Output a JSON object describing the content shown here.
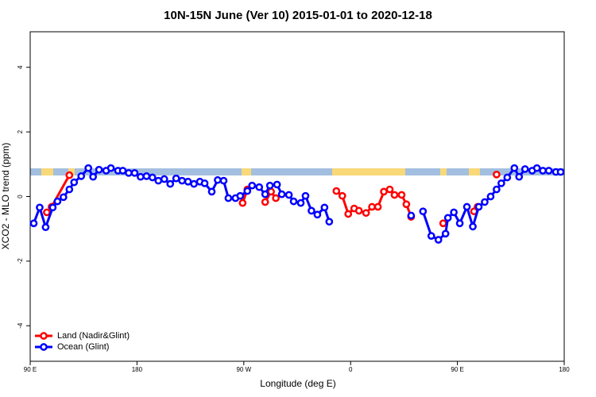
{
  "chart_data": {
    "type": "line",
    "title": "10N-15N June (Ver 10)   2015-01-01 to 2020-12-18",
    "x_label": "Longitude (deg E)",
    "y_label": "XCO2 - MLO trend (ppm)",
    "xlim": [
      90,
      540
    ],
    "ylim": [
      -5.1,
      5.1
    ],
    "xticks": [
      {
        "value": 90,
        "label": "90 E"
      },
      {
        "value": 180,
        "label": "180"
      },
      {
        "value": 270,
        "label": "90 W"
      },
      {
        "value": 360,
        "label": "0"
      },
      {
        "value": 450,
        "label": "90 E"
      },
      {
        "value": 540,
        "label": "180"
      }
    ],
    "yticks": [
      -4,
      -2,
      0,
      2,
      4
    ],
    "legend": "bottom-left",
    "series": [
      {
        "name": "Land (Nadir&Glint)",
        "color": "#ff0000",
        "x": [
          104,
          108,
          123,
          null,
          269,
          273,
          null,
          288,
          293,
          297,
          null,
          348,
          353,
          358,
          363,
          367,
          373,
          378,
          383,
          388,
          393,
          397,
          403,
          407,
          411,
          null,
          438,
          null,
          464,
          467,
          null,
          483
        ],
        "values": [
          -0.49,
          -0.32,
          0.66,
          null,
          -0.2,
          0.22,
          null,
          -0.17,
          0.15,
          -0.05,
          null,
          0.17,
          0.02,
          -0.54,
          -0.37,
          -0.44,
          -0.51,
          -0.32,
          -0.32,
          0.15,
          0.22,
          0.05,
          0.05,
          -0.24,
          -0.63,
          null,
          -0.83,
          null,
          -0.46,
          -0.32,
          null,
          0.68
        ]
      },
      {
        "name": "Ocean (Glint)",
        "color": "#0000ff",
        "x": [
          93,
          98,
          103,
          109,
          113,
          118,
          123,
          127,
          133,
          139,
          143,
          148,
          154,
          158,
          164,
          168,
          173,
          178,
          183,
          188,
          193,
          198,
          203,
          208,
          213,
          218,
          223,
          228,
          233,
          237,
          243,
          248,
          253,
          257,
          263,
          267,
          273,
          277,
          283,
          288,
          292,
          298,
          302,
          308,
          312,
          318,
          322,
          327,
          332,
          338,
          342,
          null,
          411,
          null,
          421,
          428,
          434,
          440,
          442,
          447,
          452,
          458,
          463,
          468,
          473,
          478,
          483,
          487,
          492,
          498,
          502,
          507,
          513,
          517,
          522,
          527,
          533,
          537
        ],
        "values": [
          -0.83,
          -0.34,
          -0.95,
          -0.34,
          -0.15,
          -0.02,
          0.22,
          0.44,
          0.63,
          0.88,
          0.61,
          0.83,
          0.8,
          0.88,
          0.8,
          0.8,
          0.73,
          0.73,
          0.61,
          0.63,
          0.59,
          0.49,
          0.54,
          0.39,
          0.56,
          0.49,
          0.46,
          0.39,
          0.46,
          0.41,
          0.15,
          0.51,
          0.49,
          -0.05,
          -0.05,
          0.02,
          0.17,
          0.34,
          0.29,
          0.07,
          0.34,
          0.37,
          0.07,
          0.05,
          -0.15,
          -0.2,
          0.02,
          -0.44,
          -0.56,
          -0.34,
          -0.78,
          null,
          -0.59,
          null,
          -0.46,
          -1.22,
          -1.34,
          -1.15,
          -0.66,
          -0.49,
          -0.83,
          -0.32,
          -0.93,
          -0.32,
          -0.17,
          0.0,
          0.22,
          0.41,
          0.59,
          0.88,
          0.61,
          0.85,
          0.8,
          0.88,
          0.8,
          0.8,
          0.76,
          0.76
        ]
      }
    ]
  }
}
